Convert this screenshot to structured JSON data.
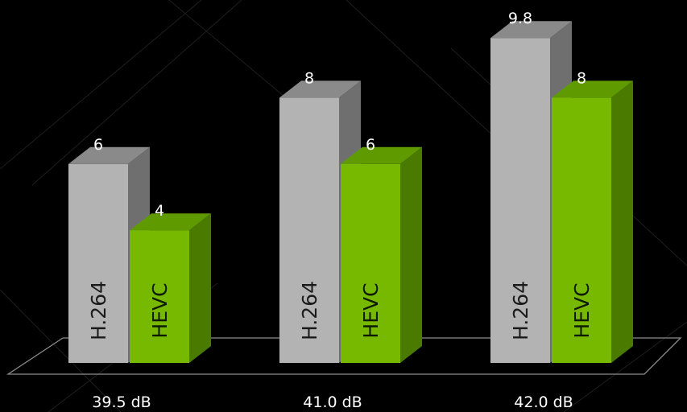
{
  "chart_data": {
    "type": "bar",
    "categories": [
      "39.5 dB",
      "41.0 dB",
      "42.0 dB"
    ],
    "series": [
      {
        "name": "H.264",
        "values": [
          6,
          8,
          9.8
        ]
      },
      {
        "name": "HEVC",
        "values": [
          4,
          6,
          8
        ]
      }
    ],
    "value_labels": [
      [
        "6",
        "8",
        "9.8"
      ],
      [
        "4",
        "6",
        "8"
      ]
    ],
    "ylim": [
      0,
      10
    ],
    "grid": false,
    "legend": "none (series names printed inside bars)",
    "title": "",
    "xlabel": "",
    "ylabel": ""
  },
  "colors": {
    "background": "#000000",
    "h264_front": "#b3b3b3",
    "h264_side": "#6f6f6f",
    "h264_top": "#8a8a8a",
    "h264_text": "#1a1a1a",
    "hevc_front": "#76b900",
    "hevc_side": "#4a7a00",
    "hevc_top": "#5f9a00",
    "hevc_text": "#0d1a00",
    "floor_line": "#8c8c8c",
    "decor_line": "#1e1e1e"
  }
}
